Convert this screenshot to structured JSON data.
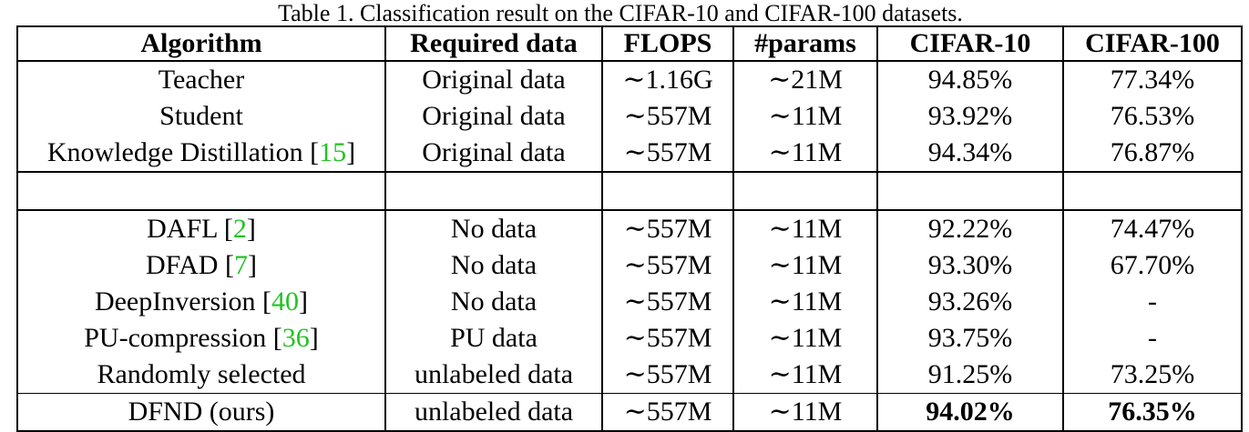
{
  "caption": "Table 1. Classification result on the CIFAR-10 and CIFAR-100 datasets.",
  "columns": [
    "Algorithm",
    "Required data",
    "FLOPS",
    "#params",
    "CIFAR-10",
    "CIFAR-100"
  ],
  "groups": [
    {
      "rows": [
        {
          "algorithm": "Teacher",
          "ref": "",
          "data": "Original data",
          "flops": "∼1.16G",
          "params": "∼21M",
          "cifar10": "94.85%",
          "cifar100": "77.34%"
        },
        {
          "algorithm": "Student",
          "ref": "",
          "data": "Original data",
          "flops": "∼557M",
          "params": "∼11M",
          "cifar10": "93.92%",
          "cifar100": "76.53%"
        },
        {
          "algorithm": "Knowledge Distillation",
          "ref": "15",
          "data": "Original data",
          "flops": "∼557M",
          "params": "∼11M",
          "cifar10": "94.34%",
          "cifar100": "76.87%"
        }
      ]
    },
    {
      "rows": [
        {
          "algorithm": "DAFL",
          "ref": "2",
          "data": "No data",
          "flops": "∼557M",
          "params": "∼11M",
          "cifar10": "92.22%",
          "cifar100": "74.47%"
        },
        {
          "algorithm": "DFAD",
          "ref": "7",
          "data": "No data",
          "flops": "∼557M",
          "params": "∼11M",
          "cifar10": "93.30%",
          "cifar100": "67.70%"
        },
        {
          "algorithm": "DeepInversion",
          "ref": "40",
          "data": "No data",
          "flops": "∼557M",
          "params": "∼11M",
          "cifar10": "93.26%",
          "cifar100": "-"
        },
        {
          "algorithm": "PU-compression",
          "ref": "36",
          "data": "PU data",
          "flops": "∼557M",
          "params": "∼11M",
          "cifar10": "93.75%",
          "cifar100": "-"
        },
        {
          "algorithm": "Randomly selected",
          "ref": "",
          "data": "unlabeled data",
          "flops": "∼557M",
          "params": "∼11M",
          "cifar10": "91.25%",
          "cifar100": "73.25%"
        },
        {
          "algorithm": "DFND (ours)",
          "ref": "",
          "data": "unlabeled data",
          "flops": "∼557M",
          "params": "∼11M",
          "cifar10": "94.02%",
          "cifar100": "76.35%",
          "bold": true
        }
      ]
    }
  ]
}
